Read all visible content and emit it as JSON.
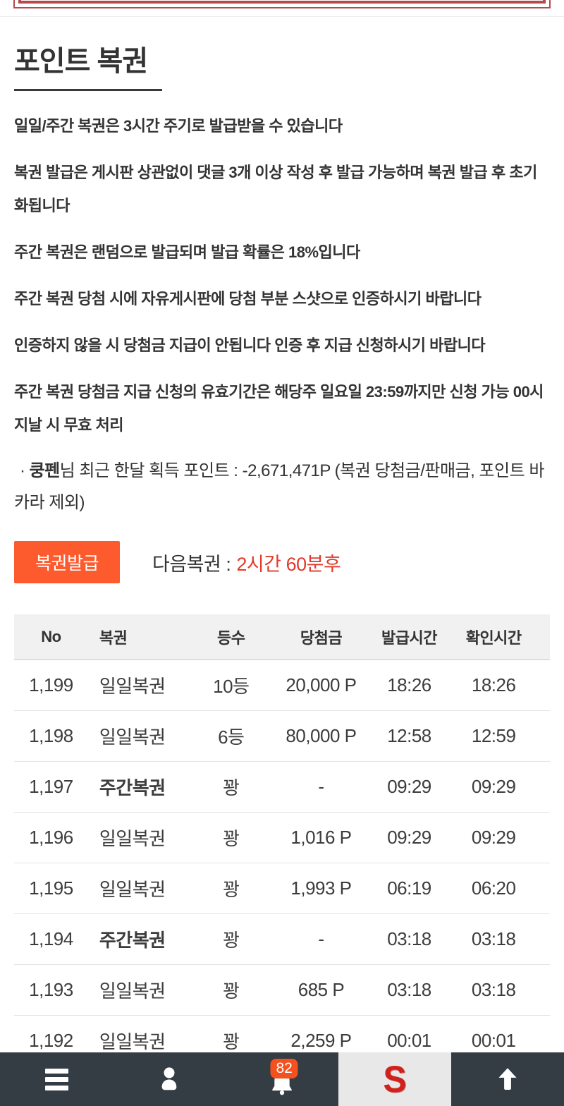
{
  "colors": {
    "accent": "#fd5a2d",
    "countdown": "#e23a2b",
    "frame": "#b5494d",
    "nav": "#343c44",
    "nav_active": "#e8e8e8",
    "badge": "#f4511e",
    "text": "#333333",
    "header_bg": "#f1f1f1",
    "logo_red": "#d0221c"
  },
  "title": "포인트 복권",
  "instructions": [
    "일일/주간 복권은 3시간 주기로 발급받을 수 있습니다",
    "복권 발급은 게시판 상관없이 댓글 3개 이상 작성 후 발급 가능하며 복권 발급 후 초기화됩니다",
    "주간 복권은 랜덤으로 발급되며 발급 확률은 18%입니다",
    "주간 복권 당첨 시에 자유게시판에 당첨 부분 스샷으로 인증하시기 바랍니다",
    "인증하지 않을 시 당첨금 지급이 안됩니다 인증 후 지급 신청하시기 바랍니다",
    "주간 복권 당첨금 지급 신청의 유효기간은 해당주 일요일 23:59까지만 신청 가능 00시 지날 시 무효 처리"
  ],
  "summary": {
    "bullet": "·",
    "username": "쿵펜",
    "rest": "님 최근 한달 획득 포인트 : -2,671,471P (복권 당첨금/판매금, 포인트 바카라 제외)"
  },
  "issue": {
    "button_label": "복권발급",
    "next_label": "다음복권 :",
    "countdown": "2시간 60분후"
  },
  "table": {
    "headers": [
      "No",
      "복권",
      "등수",
      "당첨금",
      "발급시간",
      "확인시간"
    ],
    "rows": [
      {
        "no": "1,199",
        "type": "일일복권",
        "bold": false,
        "rank": "10등",
        "prize": "20,000 P",
        "issued": "18:26",
        "checked": "18:26"
      },
      {
        "no": "1,198",
        "type": "일일복권",
        "bold": false,
        "rank": "6등",
        "prize": "80,000 P",
        "issued": "12:58",
        "checked": "12:59"
      },
      {
        "no": "1,197",
        "type": "주간복권",
        "bold": true,
        "rank": "꽝",
        "prize": "-",
        "issued": "09:29",
        "checked": "09:29"
      },
      {
        "no": "1,196",
        "type": "일일복권",
        "bold": false,
        "rank": "꽝",
        "prize": "1,016 P",
        "issued": "09:29",
        "checked": "09:29"
      },
      {
        "no": "1,195",
        "type": "일일복권",
        "bold": false,
        "rank": "꽝",
        "prize": "1,993 P",
        "issued": "06:19",
        "checked": "06:20"
      },
      {
        "no": "1,194",
        "type": "주간복권",
        "bold": true,
        "rank": "꽝",
        "prize": "-",
        "issued": "03:18",
        "checked": "03:18"
      },
      {
        "no": "1,193",
        "type": "일일복권",
        "bold": false,
        "rank": "꽝",
        "prize": "685 P",
        "issued": "03:18",
        "checked": "03:18"
      },
      {
        "no": "1,192",
        "type": "일일복권",
        "bold": false,
        "rank": "꽝",
        "prize": "2,259 P",
        "issued": "00:01",
        "checked": "00:01"
      }
    ]
  },
  "nav": {
    "badge_count": "82",
    "logo_letter": "S"
  }
}
